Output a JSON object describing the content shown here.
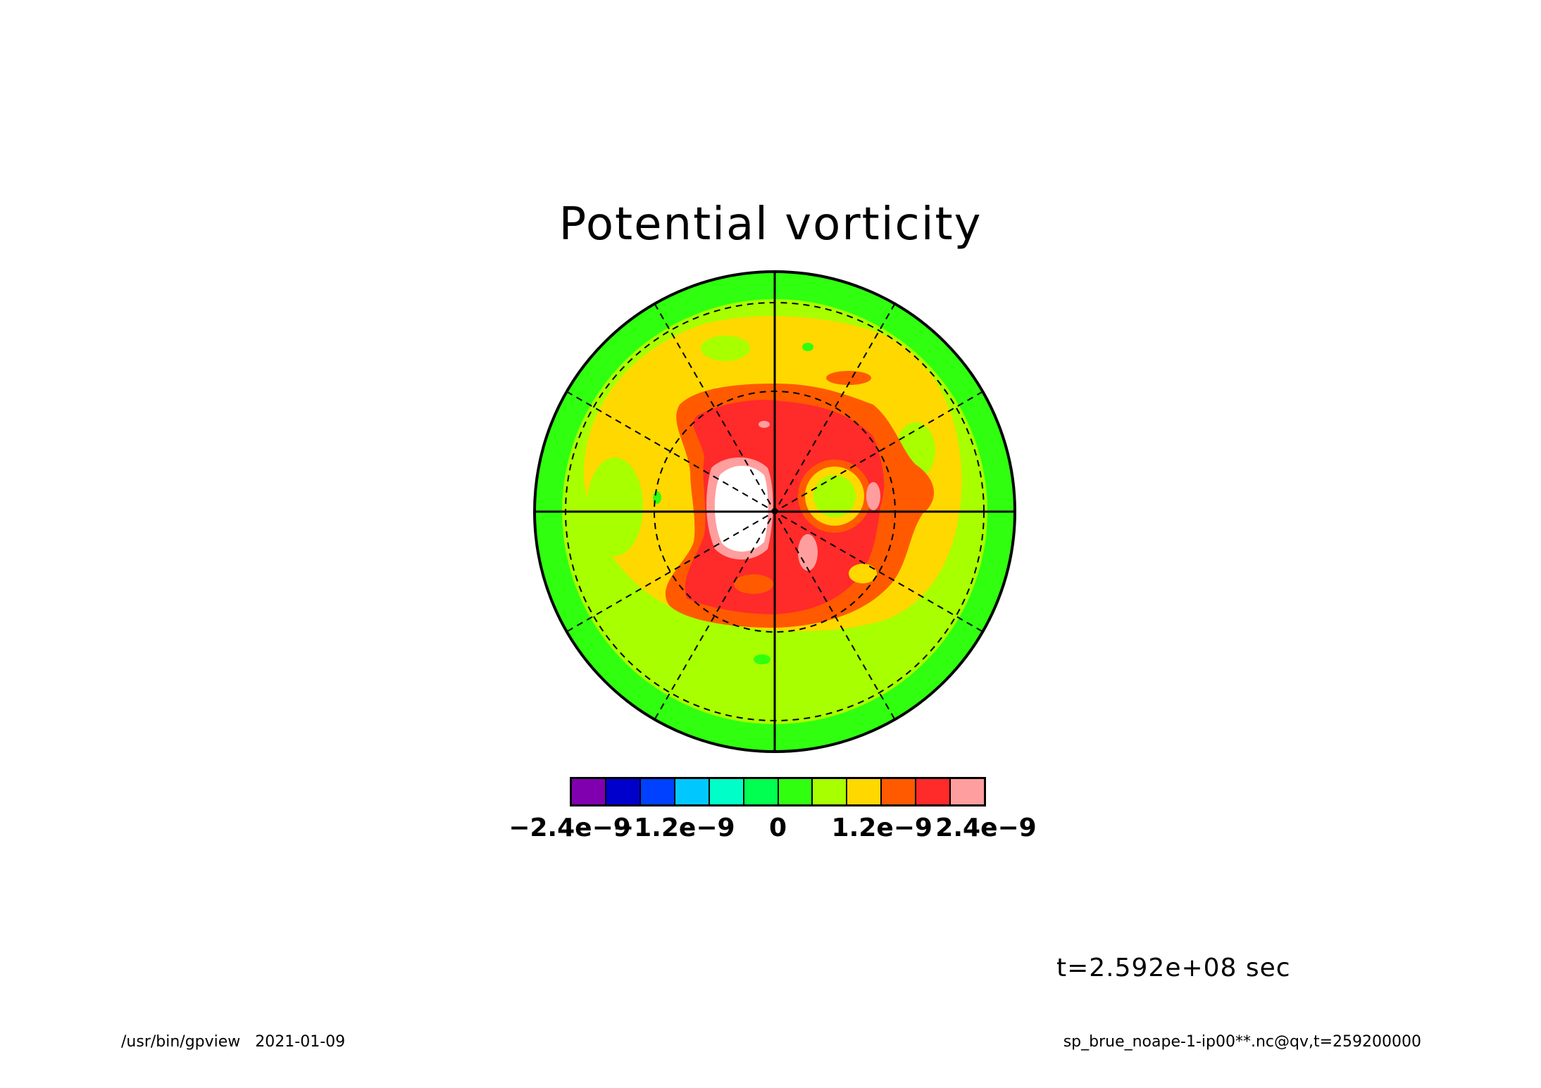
{
  "chart_data": {
    "type": "heatmap",
    "title": "Potential vorticity",
    "projection": "polar-stereographic",
    "colorbar": {
      "colors": [
        "#8000b0",
        "#0000cc",
        "#0040ff",
        "#00c8ff",
        "#00ffc8",
        "#00ff50",
        "#30ff10",
        "#a8ff00",
        "#ffd800",
        "#ff5a00",
        "#ff2a2a",
        "#ff9e9e"
      ],
      "tick_labels": [
        "−2.4e−9",
        "−1.2e−9",
        "0",
        "1.2e−9",
        "2.4e−9"
      ],
      "tick_values": [
        -2.4e-09,
        -1.2e-09,
        0,
        1.2e-09,
        2.4e-09
      ]
    },
    "value_range": [
      -2.4e-09,
      2.4e-09
    ],
    "missing_color": "#ffffff"
  },
  "time_label": "t=2.592e+08 sec",
  "footer": {
    "left": "/usr/bin/gpview   2021-01-09",
    "right": "sp_brue_noape-1-ip00**.nc@qv,t=259200000"
  }
}
